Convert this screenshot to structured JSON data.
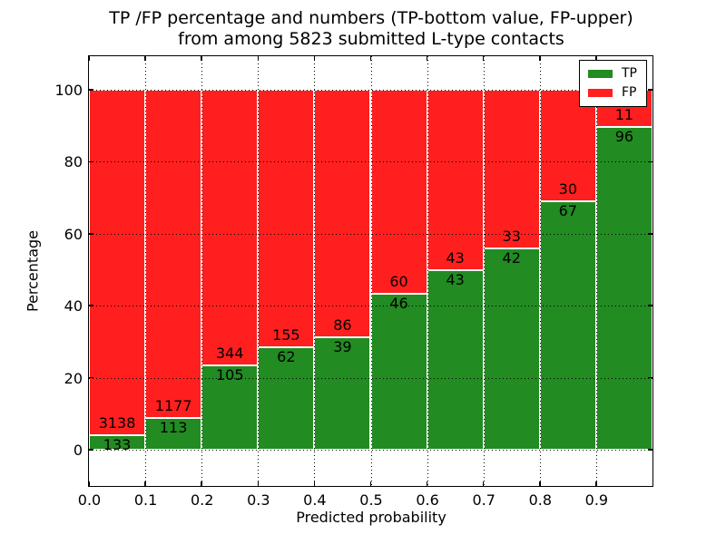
{
  "title": {
    "line1": "TP /FP percentage and numbers (TP-bottom value, FP-upper)",
    "line2": "from among 5823 submitted L-type contacts"
  },
  "axes": {
    "xlabel": "Predicted probability",
    "ylabel": "Percentage",
    "x_tick_labels": [
      "0.0",
      "0.1",
      "0.2",
      "0.3",
      "0.4",
      "0.5",
      "0.6",
      "0.7",
      "0.8",
      "0.9"
    ],
    "y_tick_labels": [
      "0",
      "20",
      "40",
      "60",
      "80",
      "100"
    ],
    "y_tick_values": [
      0,
      20,
      40,
      60,
      80,
      100
    ],
    "xlim": [
      0.0,
      1.0
    ],
    "ylim": [
      -10,
      110
    ],
    "grid_style": "dotted"
  },
  "legend": {
    "position": "upper-right",
    "items": [
      {
        "name": "tp",
        "label": "TP",
        "color": "#228b22"
      },
      {
        "name": "fp",
        "label": "FP",
        "color": "#ff1f1f"
      }
    ]
  },
  "chart_data": {
    "type": "bar",
    "stacked": true,
    "normalized_to_percent": true,
    "title": "TP /FP percentage and numbers (TP-bottom value, FP-upper) from among 5823 submitted L-type contacts",
    "xlabel": "Predicted probability",
    "ylabel": "Percentage",
    "bin_edges": [
      0.0,
      0.1,
      0.2,
      0.3,
      0.4,
      0.5,
      0.6,
      0.7,
      0.8,
      0.9,
      1.0
    ],
    "categories": [
      "0.0-0.1",
      "0.1-0.2",
      "0.2-0.3",
      "0.3-0.4",
      "0.4-0.5",
      "0.5-0.6",
      "0.6-0.7",
      "0.7-0.8",
      "0.8-0.9",
      "0.9-1.0"
    ],
    "series": [
      {
        "name": "TP",
        "color": "#228b22",
        "counts": [
          133,
          113,
          105,
          62,
          39,
          46,
          43,
          42,
          67,
          96
        ],
        "percent": [
          4.07,
          8.76,
          23.39,
          28.57,
          31.2,
          43.4,
          50.0,
          56.0,
          69.07,
          89.72
        ]
      },
      {
        "name": "FP",
        "color": "#ff1f1f",
        "counts": [
          3138,
          1177,
          344,
          155,
          86,
          60,
          43,
          33,
          30,
          11
        ],
        "percent": [
          95.93,
          91.24,
          76.61,
          71.43,
          68.8,
          56.6,
          50.0,
          44.0,
          30.93,
          10.28
        ]
      }
    ],
    "total_contacts": 5823,
    "bar_total_percent": 100,
    "xlim": [
      0,
      1
    ],
    "ylim": [
      -10,
      110
    ],
    "legend_position": "upper-right",
    "grid": true
  },
  "colors": {
    "tp": "#228b22",
    "fp": "#ff1f1f",
    "background": "#ffffff",
    "text": "#000000",
    "grid": "#000000",
    "bar_edge": "#ffffff"
  }
}
